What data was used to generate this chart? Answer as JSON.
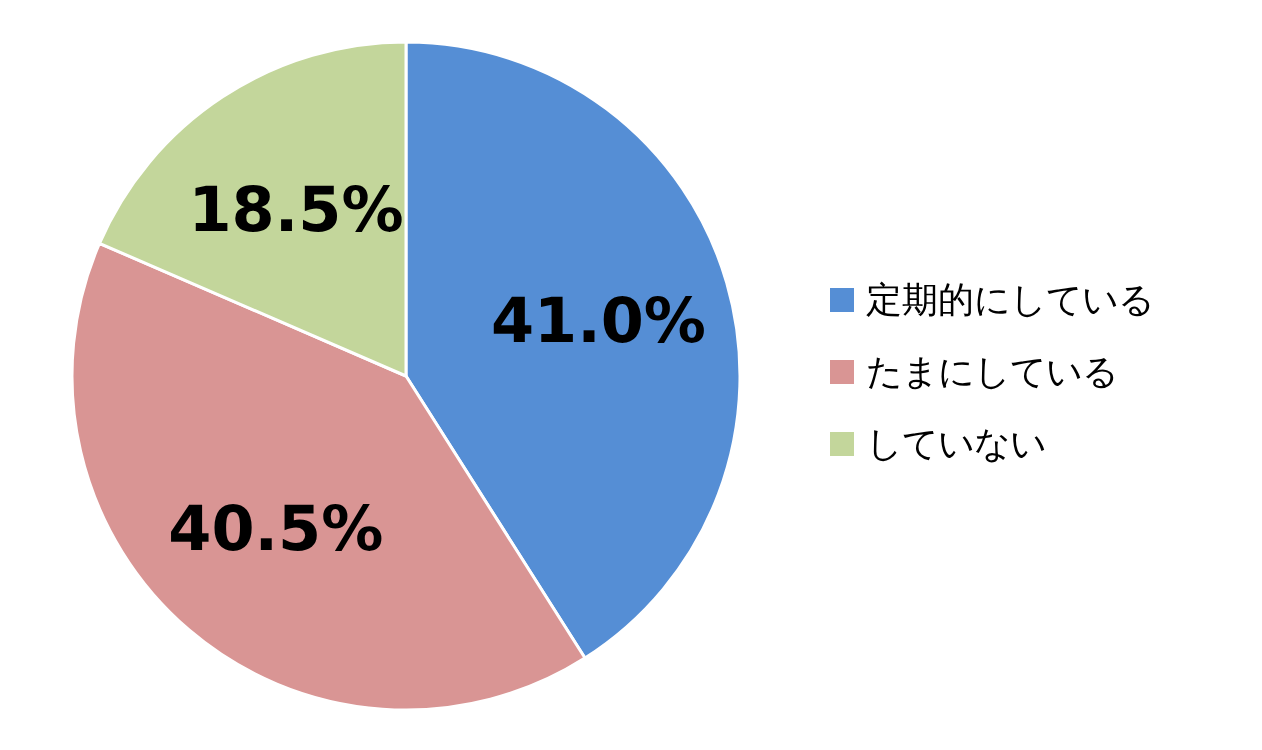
{
  "chart_data": {
    "type": "pie",
    "categories": [
      "定期的にしている",
      "たまにしている",
      "していない"
    ],
    "values": [
      41.0,
      40.5,
      18.5
    ],
    "value_labels": [
      "41.0%",
      "40.5%",
      "18.5%"
    ],
    "colors": [
      "#558ed5",
      "#d99594",
      "#c3d69b"
    ],
    "legend": "right"
  }
}
